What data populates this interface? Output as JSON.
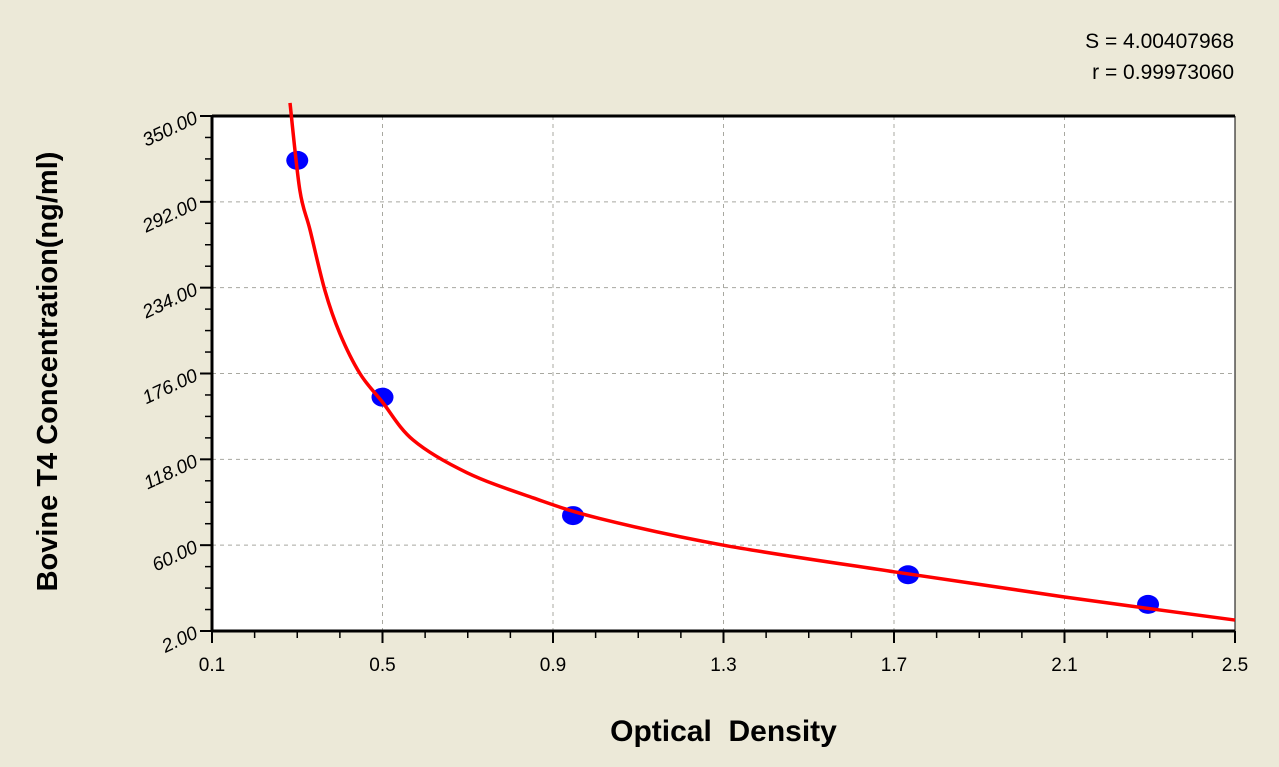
{
  "chart_data": {
    "type": "scatter",
    "title": "",
    "xlabel": "Optical  Density",
    "ylabel": "Bovine T4 Concentration(ng/ml)",
    "xlim": [
      0.1,
      2.5
    ],
    "ylim": [
      2.0,
      350.0
    ],
    "x_ticks": [
      "0.1",
      "0.5",
      "0.9",
      "1.3",
      "1.7",
      "2.1",
      "2.5"
    ],
    "y_ticks": [
      "2.00",
      "60.00",
      "118.00",
      "176.00",
      "234.00",
      "292.00",
      "350.00"
    ],
    "grid": true,
    "points": {
      "x": [
        0.3,
        0.5,
        0.947,
        1.733,
        2.296
      ],
      "y": [
        320,
        160,
        80,
        40,
        20
      ],
      "color": "#0000ff"
    },
    "fit_curve": {
      "x": [
        0.283,
        0.306,
        0.33,
        0.365,
        0.4,
        0.447,
        0.499,
        0.572,
        0.698,
        0.853,
        1.01,
        1.3,
        1.7,
        2.1,
        2.5
      ],
      "y": [
        358.8,
        300,
        273,
        232,
        203,
        176,
        157,
        131,
        109,
        92,
        78,
        60,
        42,
        25,
        9.4
      ],
      "color": "#ff0000"
    },
    "annotations": {
      "s_value": "S = 4.00407968",
      "r_value": "r = 0.99973060"
    }
  }
}
